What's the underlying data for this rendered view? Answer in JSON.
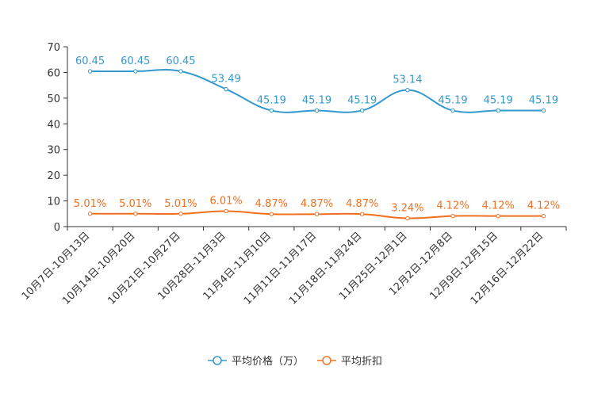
{
  "chart_data": {
    "type": "line",
    "title": "",
    "xlabel": "",
    "ylabel": "",
    "ylim": [
      0,
      70
    ],
    "yticks": [
      0,
      10,
      20,
      30,
      40,
      50,
      60,
      70
    ],
    "grid": false,
    "legend_position": "bottom-center",
    "categories": [
      "10月7日-10月13日",
      "10月14日-10月20日",
      "10月21日-10月27日",
      "10月28日-11月3日",
      "11月4日-11月10日",
      "11月11日-11月17日",
      "11月18日-11月24日",
      "11月25日-12月1日",
      "12月2日-12月8日",
      "12月9日-12月15日",
      "12月16日-12月22日"
    ],
    "series": [
      {
        "name": "平均价格（万）",
        "color": "#3399cc",
        "values": [
          60.45,
          60.45,
          60.45,
          53.49,
          45.19,
          45.19,
          45.19,
          53.14,
          45.19,
          45.19,
          45.19
        ],
        "labels": [
          "60.45",
          "60.45",
          "60.45",
          "53.49",
          "45.19",
          "45.19",
          "45.19",
          "53.14",
          "45.19",
          "45.19",
          "45.19"
        ]
      },
      {
        "name": "平均折扣",
        "color": "#f07020",
        "values": [
          5.01,
          5.01,
          5.01,
          6.01,
          4.87,
          4.87,
          4.87,
          3.24,
          4.12,
          4.12,
          4.12
        ],
        "labels": [
          "5.01%",
          "5.01%",
          "5.01%",
          "6.01%",
          "4.87%",
          "4.87%",
          "4.87%",
          "3.24%",
          "4.12%",
          "4.12%",
          "4.12%"
        ]
      }
    ]
  }
}
